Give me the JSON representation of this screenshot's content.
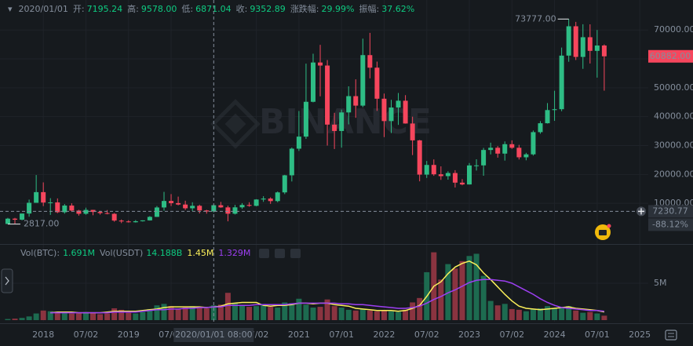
{
  "chart_data": [
    {
      "type": "candlestick",
      "header": {
        "date": "2020/01/01",
        "fields": [
          {
            "label": "开:",
            "value": "7195.24"
          },
          {
            "label": "高:",
            "value": "9578.00"
          },
          {
            "label": "低:",
            "value": "6871.04"
          },
          {
            "label": "收:",
            "value": "9352.89"
          },
          {
            "label": "涨跌幅:",
            "value": "29.99%"
          },
          {
            "label": "振幅:",
            "value": "37.62%"
          }
        ]
      },
      "watermark": "BINANCE",
      "up_color": "#2ebd85",
      "down_color": "#f6465d",
      "open": [
        2870,
        4700,
        4340,
        6470,
        10190,
        13880,
        10280,
        10330,
        6920,
        9240,
        7490,
        6390,
        7730,
        7030,
        6630,
        6370,
        4040,
        3740,
        3460,
        3810,
        4100,
        5320,
        8570,
        10820,
        10080,
        9590,
        8290,
        9150,
        7540,
        7195.24,
        9352,
        8600,
        6410,
        8620,
        9450,
        9140,
        11330,
        11650,
        10780,
        13790,
        19700,
        28920,
        33090,
        45140,
        58740,
        57690,
        37250,
        35040,
        41460,
        47100,
        43820,
        61300,
        56950,
        46210,
        38470,
        43160,
        45510,
        37630,
        31800,
        19940,
        23290,
        20050,
        19420,
        20490,
        17160,
        16540,
        23120,
        23140,
        28470,
        29230,
        27210,
        30470,
        29230,
        25940,
        26960,
        34640,
        37720,
        42280,
        42580,
        61130,
        71280,
        60670,
        67490,
        62770,
        64620
      ],
      "high": [
        4980,
        4980,
        6470,
        11300,
        19800,
        17250,
        11790,
        11710,
        9760,
        10020,
        7760,
        8500,
        7760,
        7410,
        7680,
        6620,
        4410,
        4140,
        4200,
        4140,
        5600,
        9070,
        13970,
        13200,
        12330,
        10910,
        10370,
        9530,
        7750,
        9578,
        10500,
        9190,
        9470,
        10070,
        10380,
        11440,
        12470,
        12080,
        14100,
        19860,
        29300,
        41950,
        58350,
        61780,
        64850,
        59600,
        41330,
        42450,
        50500,
        52920,
        67000,
        69000,
        59050,
        47990,
        45820,
        48190,
        47440,
        40000,
        31960,
        24670,
        25210,
        22800,
        21090,
        21480,
        18390,
        23960,
        25250,
        29180,
        31000,
        29820,
        31430,
        31800,
        30240,
        27480,
        35200,
        38450,
        44700,
        48970,
        63910,
        73777,
        72800,
        71980,
        71950,
        70000,
        65000
      ],
      "low": [
        2817,
        2970,
        4110,
        5380,
        10190,
        9040,
        6000,
        6600,
        6430,
        7040,
        5750,
        6070,
        5880,
        6100,
        6200,
        3650,
        3160,
        3350,
        3350,
        3700,
        4030,
        5280,
        7450,
        9070,
        9320,
        7710,
        7300,
        6510,
        6430,
        6871.04,
        8450,
        3780,
        6150,
        8100,
        8830,
        8990,
        10520,
        9820,
        10370,
        13200,
        17570,
        28130,
        32300,
        44950,
        47040,
        30000,
        28800,
        29280,
        37330,
        39600,
        43280,
        53260,
        42000,
        32920,
        34320,
        37150,
        37580,
        26700,
        17620,
        18780,
        19520,
        18120,
        18190,
        15480,
        16250,
        16500,
        21350,
        19550,
        26940,
        25810,
        24800,
        28860,
        25170,
        24900,
        26540,
        34100,
        37620,
        38550,
        41880,
        59000,
        59600,
        56550,
        58400,
        53500,
        49000
      ],
      "close": [
        4700,
        4340,
        6470,
        10190,
        13880,
        10280,
        10330,
        6920,
        9240,
        7490,
        6390,
        7730,
        7030,
        6630,
        6370,
        4040,
        3740,
        3460,
        3810,
        4100,
        5320,
        8570,
        10820,
        10080,
        9590,
        8290,
        9150,
        7540,
        7195.24,
        9352.89,
        8600,
        6410,
        8620,
        9450,
        9140,
        11330,
        11650,
        10780,
        13790,
        19700,
        28920,
        33090,
        45140,
        58740,
        57690,
        37250,
        35040,
        41460,
        47100,
        43820,
        61300,
        56950,
        46210,
        38470,
        43160,
        45510,
        37630,
        31800,
        19940,
        23290,
        20050,
        19420,
        20490,
        17160,
        16540,
        23120,
        23140,
        28470,
        29230,
        27210,
        30470,
        29230,
        25940,
        26960,
        34640,
        37720,
        42280,
        42580,
        61130,
        71280,
        60670,
        67490,
        62770,
        64620,
        60882
      ],
      "xlim": [
        -1.1,
        90.2
      ],
      "ylim": [
        -3800,
        80370
      ],
      "yticks": [
        {
          "value": 10000,
          "label": "10000.00"
        },
        {
          "value": 20000,
          "label": "20000.00"
        },
        {
          "value": 30000,
          "label": "30000.00"
        },
        {
          "value": 40000,
          "label": "40000.00"
        },
        {
          "value": 50000,
          "label": "50000.00"
        },
        {
          "value": 60000,
          "label": "60000.00"
        },
        {
          "value": 70000,
          "label": "70000.00"
        }
      ],
      "max_marker": {
        "value": 73777,
        "label": "73777.00"
      },
      "min_marker": {
        "value": 2817,
        "label": "2817.00"
      },
      "last_price": {
        "value": 60882,
        "label": "60882.00"
      },
      "crosshair": {
        "x": 29,
        "price": {
          "value": 7230.77,
          "label": "7230.77"
        },
        "change": "-88.12%",
        "time": "2020/01/01 08:00"
      }
    },
    {
      "type": "bar",
      "legend": [
        {
          "name": "Vol(BTC):",
          "value": "1.691M"
        },
        {
          "name": "Vol(USDT)",
          "value": "14.188B"
        }
      ],
      "up_color": "#1d6b50",
      "down_color": "#8a3440",
      "values": [
        0.15,
        0.2,
        0.3,
        0.5,
        0.9,
        1.3,
        1.2,
        1.1,
        1.0,
        0.9,
        0.9,
        1.1,
        1.0,
        0.8,
        0.9,
        1.6,
        1.4,
        1.0,
        0.9,
        1.1,
        1.5,
        2.0,
        2.2,
        1.9,
        1.5,
        1.7,
        1.9,
        1.8,
        1.6,
        2.0,
        2.1,
        3.7,
        2.3,
        2.0,
        1.8,
        1.9,
        2.2,
        1.8,
        1.7,
        2.4,
        2.3,
        2.9,
        2.1,
        1.7,
        1.8,
        2.8,
        1.9,
        1.7,
        1.4,
        1.3,
        1.5,
        1.3,
        1.2,
        1.3,
        1.2,
        1.1,
        1.4,
        2.4,
        3.0,
        6.5,
        9.2,
        5.5,
        7.6,
        7.0,
        8.0,
        8.7,
        9.0,
        6.0,
        2.6,
        2.0,
        2.2,
        1.5,
        1.4,
        1.2,
        1.5,
        1.6,
        1.9,
        1.6,
        1.8,
        1.9,
        1.3,
        1.0,
        1.1,
        0.9,
        0.6
      ],
      "series": [
        {
          "color": "#fcf05a",
          "legend_value": "1.45M",
          "values": [
            null,
            null,
            null,
            null,
            null,
            null,
            1.0,
            1.1,
            1.1,
            1.1,
            1.0,
            1.0,
            1.0,
            1.0,
            1.1,
            1.2,
            1.2,
            1.2,
            1.2,
            1.3,
            1.4,
            1.5,
            1.7,
            1.8,
            1.8,
            1.8,
            1.8,
            1.8,
            1.7,
            1.8,
            1.9,
            2.2,
            2.3,
            2.4,
            2.4,
            2.4,
            2.0,
            1.9,
            2.0,
            2.0,
            2.1,
            2.3,
            2.3,
            2.2,
            2.3,
            2.3,
            2.1,
            2.0,
            1.9,
            1.6,
            1.5,
            1.4,
            1.3,
            1.3,
            1.3,
            1.2,
            1.3,
            1.6,
            2.0,
            3.2,
            4.6,
            5.2,
            6.3,
            7.2,
            7.7,
            8.0,
            7.5,
            6.4,
            5.5,
            4.5,
            3.5,
            2.6,
            1.9,
            1.6,
            1.5,
            1.4,
            1.5,
            1.6,
            1.7,
            1.8,
            1.6,
            1.5,
            1.4,
            1.3,
            1.1
          ]
        },
        {
          "color": "#9d3ff2",
          "legend_value": "1.329M",
          "values": [
            null,
            null,
            null,
            null,
            null,
            null,
            1.0,
            1.0,
            1.0,
            1.0,
            1.0,
            1.0,
            1.0,
            1.0,
            1.0,
            1.1,
            1.1,
            1.1,
            1.1,
            1.2,
            1.3,
            1.4,
            1.4,
            1.5,
            1.5,
            1.6,
            1.6,
            1.7,
            1.7,
            1.8,
            1.8,
            2.0,
            2.0,
            2.0,
            2.0,
            2.1,
            2.1,
            2.1,
            2.1,
            2.1,
            2.2,
            2.3,
            2.3,
            2.3,
            2.3,
            2.3,
            2.3,
            2.2,
            2.2,
            2.1,
            2.1,
            2.0,
            1.9,
            1.8,
            1.7,
            1.6,
            1.6,
            1.7,
            1.9,
            2.3,
            2.8,
            3.2,
            3.7,
            4.1,
            4.6,
            5.1,
            5.4,
            5.5,
            5.5,
            5.4,
            5.3,
            5.0,
            4.5,
            4.0,
            3.5,
            2.9,
            2.4,
            2.0,
            1.7,
            1.6,
            1.5,
            1.4,
            1.3,
            1.3,
            1.2
          ]
        }
      ],
      "xlim": [
        -1.1,
        90.2
      ],
      "ylim": [
        0,
        9.9
      ],
      "yticks": [
        {
          "value": 5,
          "label": "5M"
        }
      ],
      "xticks": [
        {
          "value": 5,
          "label": "2018"
        },
        {
          "value": 11,
          "label": "07/02"
        },
        {
          "value": 17,
          "label": "2019"
        },
        {
          "value": 23,
          "label": "07/02"
        },
        {
          "value": 35,
          "label": "07/02"
        },
        {
          "value": 41,
          "label": "2021"
        },
        {
          "value": 47,
          "label": "07/01"
        },
        {
          "value": 53,
          "label": "2022"
        },
        {
          "value": 59,
          "label": "07/02"
        },
        {
          "value": 65,
          "label": "2023"
        },
        {
          "value": 71,
          "label": "07/02"
        },
        {
          "value": 77,
          "label": "2024"
        },
        {
          "value": 83,
          "label": "07/01"
        },
        {
          "value": 89,
          "label": "2025"
        }
      ]
    }
  ]
}
